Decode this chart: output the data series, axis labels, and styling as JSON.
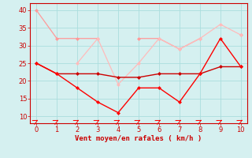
{
  "x": [
    0,
    1,
    2,
    3,
    4,
    5,
    6,
    7,
    8,
    9,
    10
  ],
  "line1": [
    40,
    32,
    32,
    32,
    null,
    32,
    32,
    29,
    32,
    null,
    33
  ],
  "line2": [
    null,
    null,
    25,
    32,
    19,
    25,
    32,
    29,
    32,
    36,
    33
  ],
  "line3": [
    25,
    22,
    22,
    22,
    21,
    21,
    22,
    22,
    22,
    24,
    24
  ],
  "line4": [
    25,
    22,
    18,
    14,
    11,
    18,
    18,
    14,
    22,
    32,
    24
  ],
  "line1_color": "#ff9999",
  "line2_color": "#ffbbbb",
  "line3_color": "#cc0000",
  "line4_color": "#ff0000",
  "bg_color": "#d5f0f0",
  "grid_color": "#aadddd",
  "xlabel": "Vent moyen/en rafales ( km/h )",
  "xlabel_color": "#cc0000",
  "tick_color": "#cc0000",
  "ylim": [
    8,
    42
  ],
  "xlim": [
    -0.3,
    10.3
  ],
  "yticks": [
    10,
    15,
    20,
    25,
    30,
    35,
    40
  ],
  "xticks": [
    0,
    1,
    2,
    3,
    4,
    5,
    6,
    7,
    8,
    9,
    10
  ],
  "figwidth": 3.2,
  "figheight": 2.0,
  "dpi": 100
}
